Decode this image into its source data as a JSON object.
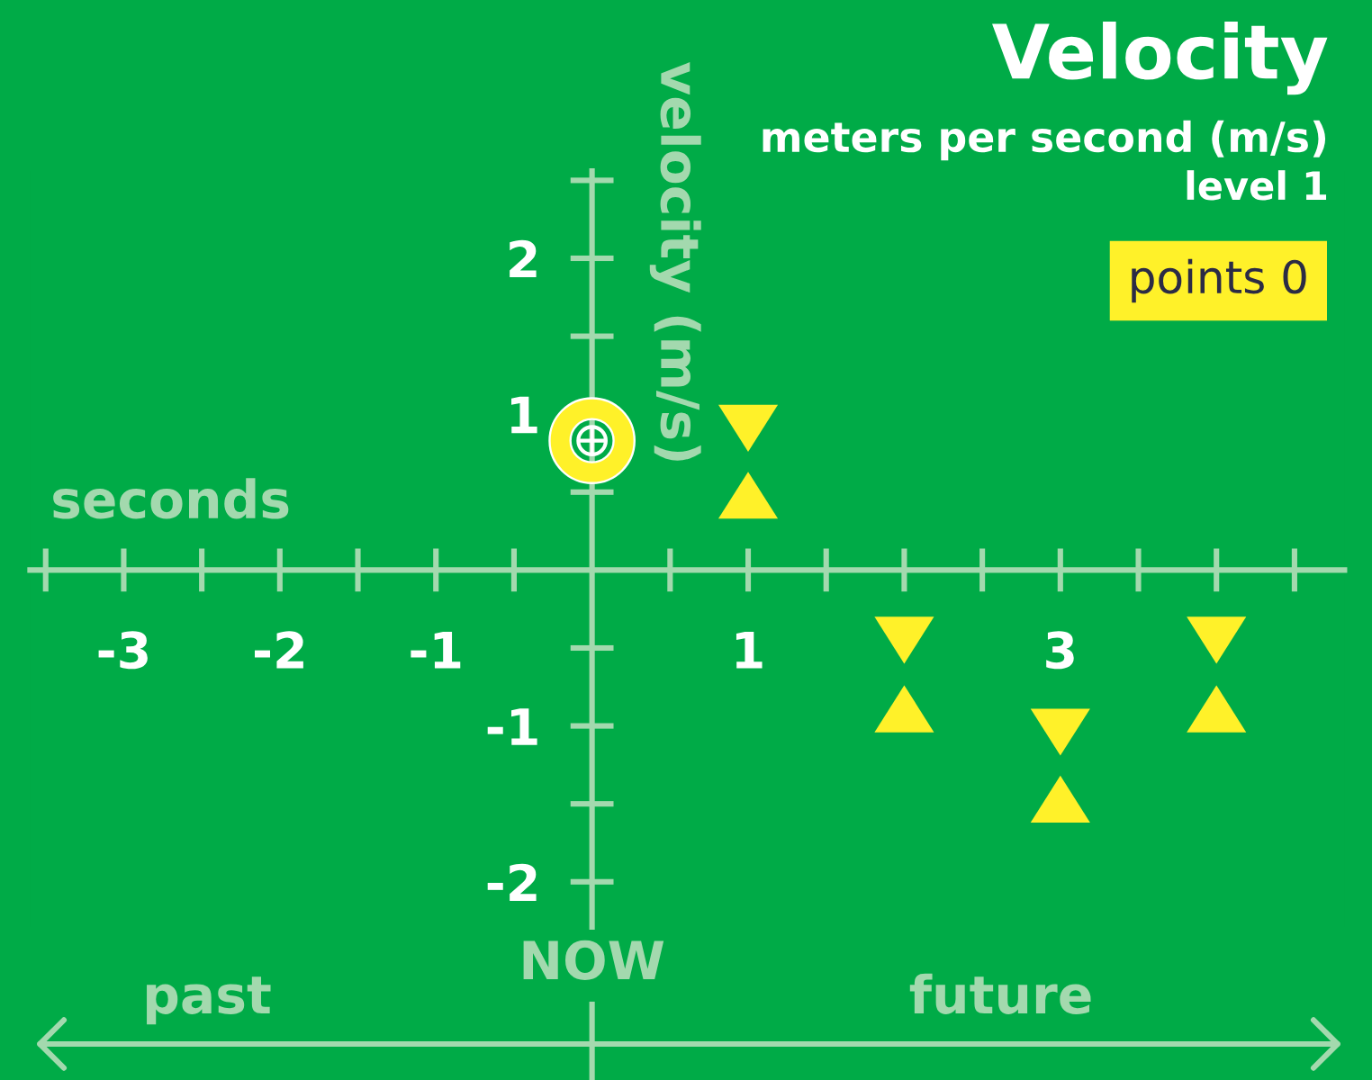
{
  "chart_data": {
    "type": "scatter",
    "title": "Velocity",
    "subtitle": "meters per second (m/s)",
    "xlabel": "seconds",
    "ylabel": "velocity (m/s)",
    "annotations": [
      "level 1",
      "points 0",
      "NOW",
      "past",
      "future"
    ],
    "series": [
      {
        "color": "#fff129",
        "x": [
          0
        ],
        "values": [
          0.83
        ],
        "marker": "circle"
      },
      {
        "color": "#fff129",
        "x": [
          1,
          2,
          3,
          4
        ],
        "values": [
          0.91,
          -0.45,
          -1.04,
          -0.45
        ],
        "marker": "triangle"
      },
      {
        "color": "#fff129",
        "x": [
          1,
          2,
          3,
          4
        ],
        "values": [
          0.48,
          -0.89,
          -1.47,
          -0.89
        ],
        "marker": "triangle"
      }
    ],
    "xlim": [
      -3.6,
      4.82
    ],
    "xticks": [
      {
        "value": -3.5,
        "label": null
      },
      -3,
      {
        "value": -2.5,
        "label": null
      },
      -2,
      {
        "value": -1.5,
        "label": null
      },
      -1,
      {
        "value": -0.5,
        "label": null
      },
      {
        "value": 0.5,
        "label": null
      },
      1,
      {
        "value": 1.5,
        "label": null
      },
      {
        "value": 2,
        "label": null
      },
      {
        "value": 2.5,
        "label": null
      },
      3,
      {
        "value": 3.5,
        "label": null
      },
      {
        "value": 4,
        "label": null
      },
      {
        "value": 4.5,
        "label": null
      }
    ],
    "ylim": [
      -2.29,
      2.56
    ],
    "yticks": [
      -2,
      {
        "value": -1.5,
        "label": null
      },
      -1,
      {
        "value": -0.5,
        "label": null
      },
      {
        "value": 0.5,
        "label": null
      },
      1,
      {
        "value": 1.5,
        "label": null
      },
      2,
      {
        "value": 2.5,
        "label": null
      }
    ]
  }
}
